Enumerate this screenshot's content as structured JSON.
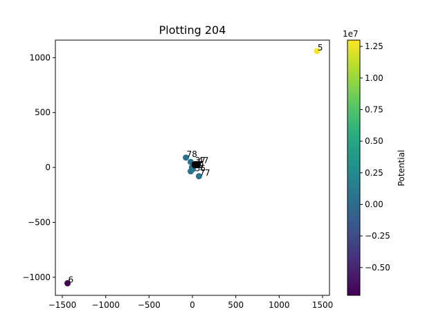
{
  "chart_data": {
    "type": "scatter",
    "title": "Plotting 204",
    "xlim": [
      -1580,
      1580
    ],
    "ylim": [
      -1165,
      1160
    ],
    "x_ticks": [
      -1500,
      -1000,
      -500,
      0,
      500,
      1000,
      1500
    ],
    "y_ticks": [
      -1000,
      -500,
      0,
      500,
      1000
    ],
    "x_tick_labels": [
      "−1500",
      "−1000",
      "−500",
      "0",
      "500",
      "1000",
      "1500"
    ],
    "y_tick_labels": [
      "−1000",
      "−500",
      "0",
      "500",
      "1000"
    ],
    "colorbar": {
      "label": "Potential",
      "multiplier": "1e7",
      "colormap": "viridis",
      "range": [
        -0.72,
        1.3
      ],
      "ticks": [
        -0.5,
        -0.25,
        0.0,
        0.25,
        0.5,
        0.75,
        1.0,
        1.25
      ],
      "tick_labels": [
        "−0.50",
        "−0.25",
        "0.00",
        "0.25",
        "0.50",
        "0.75",
        "1.00",
        "1.25"
      ]
    },
    "points": [
      {
        "label": "5",
        "x": 1435,
        "y": 1060,
        "potential": 1.28
      },
      {
        "label": "6",
        "x": -1440,
        "y": -1055,
        "potential": -0.72
      },
      {
        "label": "78",
        "x": -75,
        "y": 90,
        "potential": 0.05
      },
      {
        "label": "",
        "x": -20,
        "y": 50,
        "potential": 0.06
      },
      {
        "label": "",
        "x": -5,
        "y": 0,
        "potential": 0.04
      },
      {
        "label": "",
        "x": -20,
        "y": -35,
        "potential": 0.05
      },
      {
        "label": "",
        "x": 5,
        "y": -15,
        "potential": 0.06
      },
      {
        "label": "77",
        "x": 75,
        "y": -80,
        "potential": 0.05
      }
    ],
    "square_markers": [
      {
        "x": 30,
        "y": 30
      },
      {
        "x": 45,
        "y": 35
      },
      {
        "x": 60,
        "y": 28
      },
      {
        "x": 70,
        "y": 35
      },
      {
        "x": 35,
        "y": 15
      },
      {
        "x": 55,
        "y": 18
      },
      {
        "x": 20,
        "y": 25
      },
      {
        "x": 65,
        "y": 20
      }
    ],
    "cluster_labels": [
      {
        "label": "37",
        "x": 30,
        "y": 40
      },
      {
        "label": "47",
        "x": 65,
        "y": 40
      },
      {
        "label": "59",
        "x": 10,
        "y": -5
      },
      {
        "label": "56",
        "x": 30,
        "y": -35
      }
    ]
  }
}
